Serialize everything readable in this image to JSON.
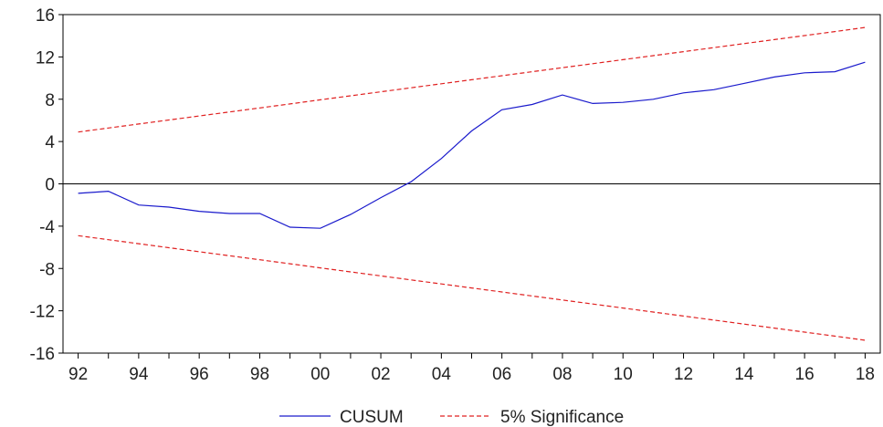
{
  "chart_data": {
    "type": "line",
    "title": "",
    "xlabel": "",
    "ylabel": "",
    "x": [
      1992,
      1993,
      1994,
      1995,
      1996,
      1997,
      1998,
      1999,
      2000,
      2001,
      2002,
      2003,
      2004,
      2005,
      2006,
      2007,
      2008,
      2009,
      2010,
      2011,
      2012,
      2013,
      2014,
      2015,
      2016,
      2017,
      2018
    ],
    "xticks": [
      {
        "value": 1992,
        "label": "92"
      },
      {
        "value": 1994,
        "label": "94"
      },
      {
        "value": 1996,
        "label": "96"
      },
      {
        "value": 1998,
        "label": "98"
      },
      {
        "value": 2000,
        "label": "00"
      },
      {
        "value": 2002,
        "label": "02"
      },
      {
        "value": 2004,
        "label": "04"
      },
      {
        "value": 2006,
        "label": "06"
      },
      {
        "value": 2008,
        "label": "08"
      },
      {
        "value": 2010,
        "label": "10"
      },
      {
        "value": 2012,
        "label": "12"
      },
      {
        "value": 2014,
        "label": "14"
      },
      {
        "value": 2016,
        "label": "16"
      },
      {
        "value": 2018,
        "label": "18"
      }
    ],
    "yticks": [
      16,
      12,
      8,
      4,
      0,
      -4,
      -8,
      -12,
      -16
    ],
    "xlim": [
      1991.5,
      2018.5
    ],
    "ylim": [
      -16,
      16
    ],
    "zero_line": true,
    "grid": false,
    "legend_position": "bottom-center",
    "series": [
      {
        "name": "CUSUM",
        "color": "#1a1acc",
        "style": "solid",
        "values": [
          -0.9,
          -0.7,
          -2.0,
          -2.2,
          -2.6,
          -2.8,
          -2.8,
          -4.1,
          -4.2,
          -2.9,
          -1.3,
          0.2,
          2.4,
          5.0,
          7.0,
          7.5,
          8.4,
          7.6,
          7.7,
          8.0,
          8.6,
          8.9,
          9.5,
          10.1,
          10.5,
          10.6,
          11.5
        ]
      },
      {
        "name": "5% Significance",
        "color": "#e02020",
        "style": "dashed",
        "values": [
          4.9,
          5.28,
          5.66,
          6.04,
          6.42,
          6.8,
          7.18,
          7.56,
          7.94,
          8.32,
          8.7,
          9.08,
          9.46,
          9.84,
          10.22,
          10.6,
          10.98,
          11.36,
          11.74,
          12.12,
          12.5,
          12.88,
          13.26,
          13.64,
          14.02,
          14.4,
          14.78
        ]
      },
      {
        "name": "5% Significance (lower)",
        "legend": false,
        "color": "#e02020",
        "style": "dashed",
        "values": [
          -4.9,
          -5.28,
          -5.66,
          -6.04,
          -6.42,
          -6.8,
          -7.18,
          -7.56,
          -7.94,
          -8.32,
          -8.7,
          -9.08,
          -9.46,
          -9.84,
          -10.22,
          -10.6,
          -10.98,
          -11.36,
          -11.74,
          -12.12,
          -12.5,
          -12.88,
          -13.26,
          -13.64,
          -14.02,
          -14.4,
          -14.78
        ]
      }
    ],
    "legend": [
      {
        "label": "CUSUM",
        "color": "#1a1acc",
        "style": "solid"
      },
      {
        "label": "5% Significance",
        "color": "#e02020",
        "style": "dashed"
      }
    ]
  }
}
